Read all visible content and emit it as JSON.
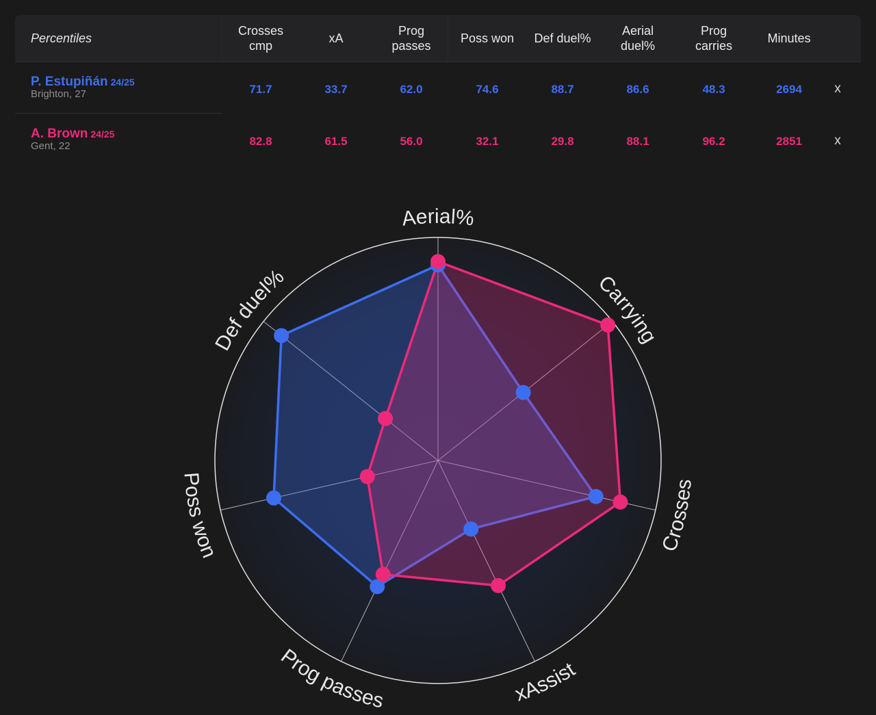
{
  "table": {
    "percentiles_label": "Percentiles",
    "columns": [
      "Crosses\ncmp",
      "xA",
      "Prog\npasses",
      "Poss won",
      "Def duel%",
      "Aerial\nduel%",
      "Prog\ncarries",
      "Minutes"
    ],
    "players": [
      {
        "name": "P. Estupiñán",
        "season": "24/25",
        "meta": "Brighton, 27",
        "color": "#3d6ef0",
        "values": [
          "71.7",
          "33.7",
          "62.0",
          "74.6",
          "88.7",
          "86.6",
          "48.3",
          "2694"
        ],
        "remove_label": "x"
      },
      {
        "name": "A. Brown",
        "season": "24/25",
        "meta": "Gent, 22",
        "color": "#ec2a79",
        "values": [
          "82.8",
          "61.5",
          "56.0",
          "32.1",
          "29.8",
          "88.1",
          "96.2",
          "2851"
        ],
        "remove_label": "x"
      }
    ]
  },
  "chart_data": {
    "type": "radar",
    "axes": [
      "Aerial%",
      "Carrying",
      "Crosses",
      "xAssist",
      "Prog passes",
      "Poss won",
      "Def duel%"
    ],
    "range": [
      0,
      100
    ],
    "series": [
      {
        "name": "P. Estupiñán",
        "color": "#3d6ef0",
        "values": [
          86.6,
          48.3,
          71.7,
          33.7,
          62.0,
          74.6,
          88.7
        ]
      },
      {
        "name": "A. Brown",
        "color": "#ec2a79",
        "values": [
          88.1,
          96.2,
          82.8,
          61.5,
          56.0,
          32.1,
          29.8
        ]
      }
    ]
  }
}
